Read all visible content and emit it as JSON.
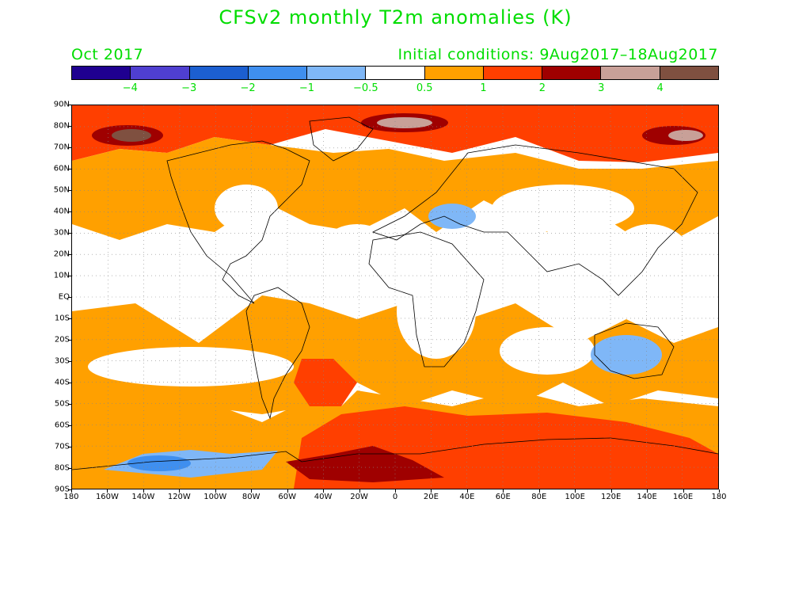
{
  "title": "CFSv2 monthly T2m anomalies (K)",
  "forecast_month": "Oct 2017",
  "initial_conditions": "Initial conditions: 9Aug2017–18Aug2017",
  "colorbar": {
    "colors": [
      "#1f0090",
      "#4f3fd0",
      "#1c5fd0",
      "#3f8fef",
      "#7fb7f7",
      "#ffffff",
      "#ffa000",
      "#ff3f00",
      "#9f0000",
      "#c8a098",
      "#7f5040"
    ],
    "labels": [
      "−4",
      "−3",
      "−2",
      "−1",
      "−0.5",
      "0.5",
      "1",
      "2",
      "3",
      "4"
    ]
  },
  "axes": {
    "lat_labels": [
      "90N",
      "80N",
      "70N",
      "60N",
      "50N",
      "40N",
      "30N",
      "20N",
      "10N",
      "EQ",
      "10S",
      "20S",
      "30S",
      "40S",
      "50S",
      "60S",
      "70S",
      "80S",
      "90S"
    ],
    "lon_labels": [
      "180",
      "160W",
      "140W",
      "120W",
      "100W",
      "80W",
      "60W",
      "40W",
      "20W",
      "0",
      "20E",
      "40E",
      "60E",
      "80E",
      "100E",
      "120E",
      "140E",
      "160E",
      "180"
    ]
  }
}
